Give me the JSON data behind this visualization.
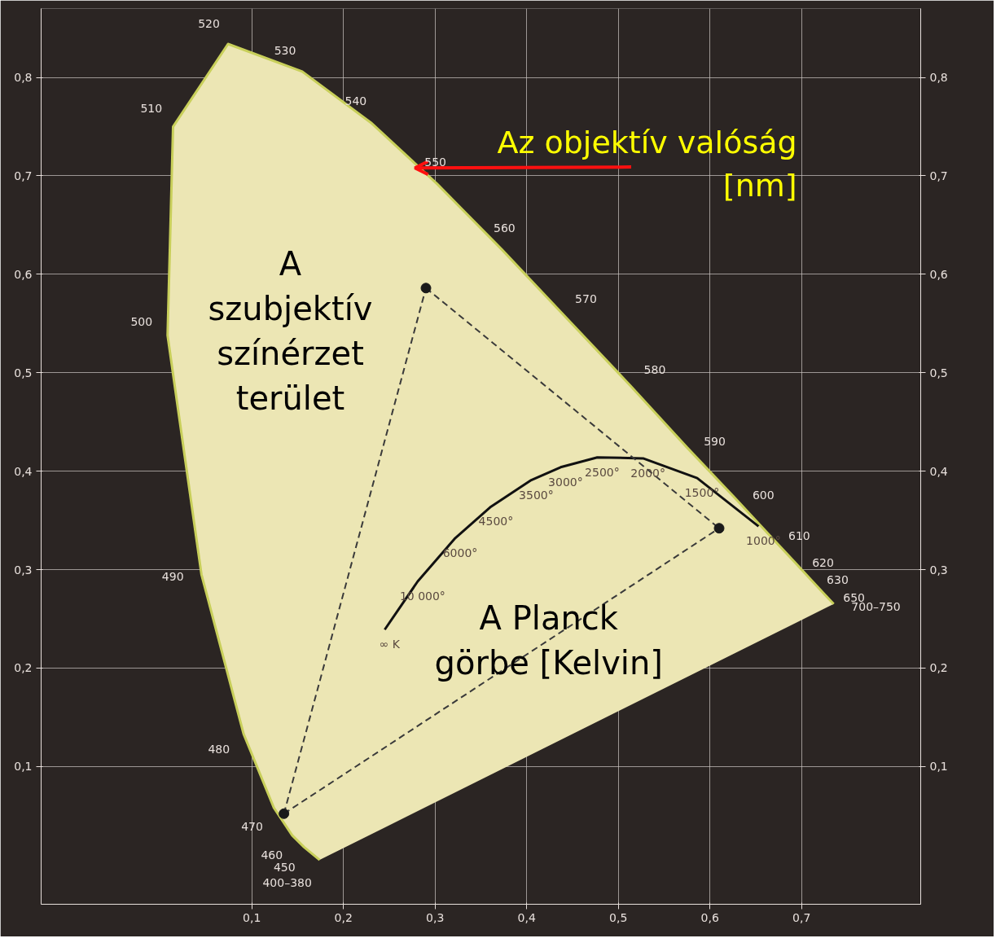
{
  "chart_data": {
    "type": "line",
    "xlim": [
      -0.13,
      0.83
    ],
    "ylim": [
      -0.04,
      0.87
    ],
    "y2lim": [
      -0.04,
      0.87
    ],
    "xticks": [
      {
        "value": 0.1,
        "label": "0,1"
      },
      {
        "value": 0.2,
        "label": "0,2"
      },
      {
        "value": 0.3,
        "label": "0,3"
      },
      {
        "value": 0.4,
        "label": "0,4"
      },
      {
        "value": 0.5,
        "label": "0,5"
      },
      {
        "value": 0.6,
        "label": "0,6"
      },
      {
        "value": 0.7,
        "label": "0,7"
      }
    ],
    "yticks": [
      {
        "value": 0.1,
        "label": "0,1"
      },
      {
        "value": 0.2,
        "label": "0,2"
      },
      {
        "value": 0.3,
        "label": "0,3"
      },
      {
        "value": 0.4,
        "label": "0,4"
      },
      {
        "value": 0.5,
        "label": "0,5"
      },
      {
        "value": 0.6,
        "label": "0,6"
      },
      {
        "value": 0.7,
        "label": "0,7"
      },
      {
        "value": 0.8,
        "label": "0,8"
      }
    ],
    "y2ticks": [
      {
        "value": 0.1,
        "label": "0,1"
      },
      {
        "value": 0.2,
        "label": "0,2"
      },
      {
        "value": 0.3,
        "label": "0,3"
      },
      {
        "value": 0.4,
        "label": "0,4"
      },
      {
        "value": 0.5,
        "label": "0,5"
      },
      {
        "value": 0.6,
        "label": "0,6"
      },
      {
        "value": 0.7,
        "label": "0,7"
      },
      {
        "value": 0.8,
        "label": "0,8"
      }
    ],
    "grid": true,
    "series": [
      {
        "color": "#c8cf5a",
        "x": [
          0.174,
          0.157,
          0.144,
          0.124,
          0.091,
          0.045,
          0.008,
          0.014,
          0.074,
          0.155,
          0.23,
          0.302,
          0.373,
          0.444,
          0.513,
          0.575,
          0.627,
          0.666,
          0.692,
          0.708,
          0.726,
          0.735
        ],
        "values": [
          0.005,
          0.018,
          0.03,
          0.058,
          0.133,
          0.295,
          0.538,
          0.75,
          0.834,
          0.806,
          0.754,
          0.692,
          0.625,
          0.555,
          0.487,
          0.424,
          0.373,
          0.334,
          0.308,
          0.292,
          0.274,
          0.265
        ]
      },
      {
        "color": "#111111",
        "x": [
          0.245,
          0.281,
          0.322,
          0.361,
          0.405,
          0.437,
          0.477,
          0.527,
          0.586,
          0.653
        ],
        "values": [
          0.239,
          0.288,
          0.332,
          0.364,
          0.391,
          0.404,
          0.414,
          0.413,
          0.393,
          0.344
        ]
      },
      {
        "color": "#3a3a3a",
        "line_style": "dashed",
        "x": [
          0.135,
          0.29
        ],
        "values": [
          0.052,
          0.586
        ]
      },
      {
        "color": "#3a3a3a",
        "line_style": "dashed",
        "x": [
          0.29,
          0.61
        ],
        "values": [
          0.586,
          0.342
        ]
      },
      {
        "color": "#3a3a3a",
        "line_style": "dashed",
        "x": [
          0.135,
          0.61
        ],
        "values": [
          0.052,
          0.342
        ]
      },
      {
        "type": "scatter",
        "color": "#1a1a1a",
        "marker": "circle",
        "x": [
          0.29,
          0.61,
          0.135
        ],
        "values": [
          0.586,
          0.342,
          0.052
        ]
      }
    ],
    "annotations": [
      {
        "text": "Az objektív valóság\n[nm]",
        "x": 0.278,
        "y": 0.708
      },
      "A\nszubjektív\nszínérzet\nterület",
      "A Planck\ngörbe [Kelvin]",
      {
        "text": "400–380",
        "x": 0.174,
        "y": 0.005
      },
      {
        "text": "450",
        "x": 0.157,
        "y": 0.018
      },
      {
        "text": "460",
        "x": 0.144,
        "y": 0.03
      },
      {
        "text": "470",
        "x": 0.124,
        "y": 0.058
      },
      {
        "text": "480",
        "x": 0.091,
        "y": 0.133
      },
      {
        "text": "490",
        "x": 0.045,
        "y": 0.295
      },
      {
        "text": "500",
        "x": 0.008,
        "y": 0.538
      },
      {
        "text": "510",
        "x": 0.014,
        "y": 0.75
      },
      {
        "text": "520",
        "x": 0.074,
        "y": 0.834
      },
      {
        "text": "530",
        "x": 0.155,
        "y": 0.806
      },
      {
        "text": "540",
        "x": 0.23,
        "y": 0.754
      },
      {
        "text": "550",
        "x": 0.302,
        "y": 0.692
      },
      {
        "text": "560",
        "x": 0.373,
        "y": 0.625
      },
      {
        "text": "570",
        "x": 0.444,
        "y": 0.555
      },
      {
        "text": "580",
        "x": 0.513,
        "y": 0.487
      },
      {
        "text": "590",
        "x": 0.575,
        "y": 0.424
      },
      {
        "text": "600",
        "x": 0.627,
        "y": 0.373
      },
      {
        "text": "610",
        "x": 0.666,
        "y": 0.334
      },
      {
        "text": "620",
        "x": 0.692,
        "y": 0.308
      },
      {
        "text": "630",
        "x": 0.708,
        "y": 0.292
      },
      {
        "text": "650",
        "x": 0.726,
        "y": 0.274
      },
      {
        "text": "700–750",
        "x": 0.735,
        "y": 0.265
      },
      {
        "text": "∞ K",
        "x": 0.245,
        "y": 0.239
      },
      {
        "text": "10 000°",
        "x": 0.281,
        "y": 0.288
      },
      {
        "text": "6000°",
        "x": 0.322,
        "y": 0.332
      },
      {
        "text": "4500°",
        "x": 0.361,
        "y": 0.364
      },
      {
        "text": "3500°",
        "x": 0.405,
        "y": 0.391
      },
      {
        "text": "3000°",
        "x": 0.437,
        "y": 0.404
      },
      {
        "text": "2500°",
        "x": 0.477,
        "y": 0.414
      },
      {
        "text": "2000°",
        "x": 0.527,
        "y": 0.413
      },
      {
        "text": "1500°",
        "x": 0.586,
        "y": 0.393
      },
      {
        "text": "1000°",
        "x": 0.653,
        "y": 0.344
      }
    ]
  }
}
